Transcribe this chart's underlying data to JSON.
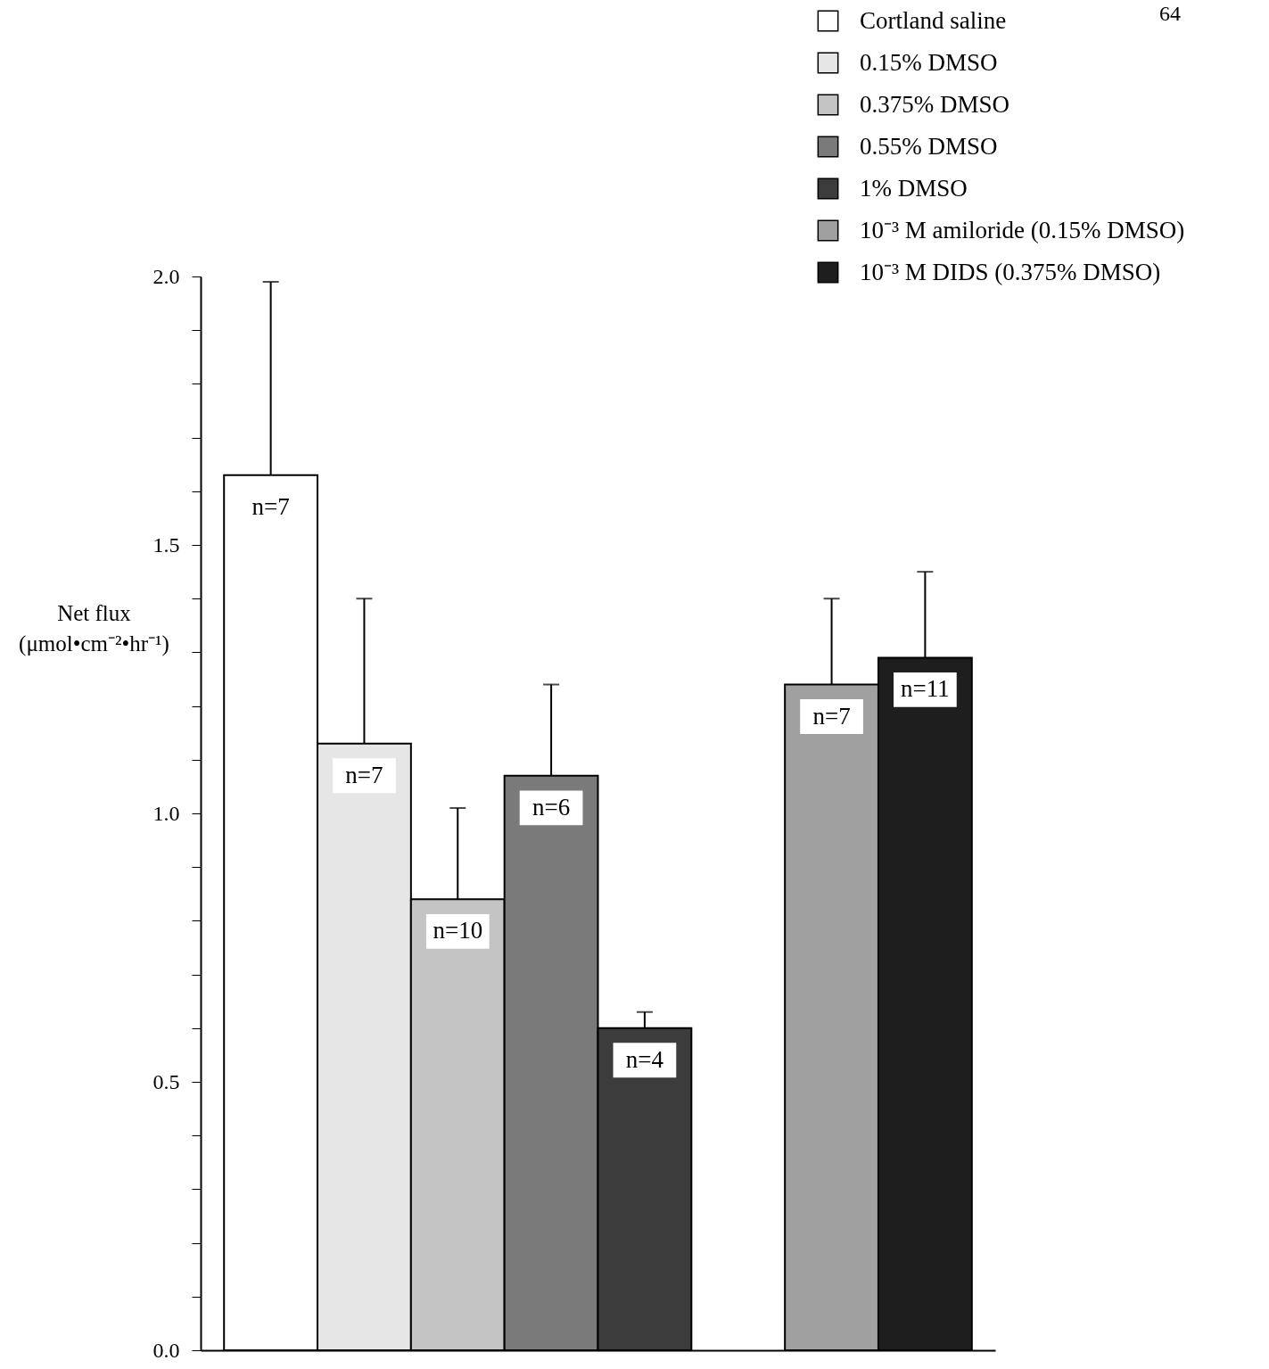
{
  "chart_data": {
    "type": "bar",
    "ylabel": "Net flux\n(μmol•cm⁻²•hr⁻¹)",
    "categories": [
      null,
      null,
      null,
      null,
      null,
      null,
      null,
      null
    ],
    "series": [
      {
        "name": "Cortland saline",
        "color": "#ffffff",
        "values": [
          1.63,
          null,
          null,
          null,
          null,
          null,
          null,
          null
        ],
        "errors": [
          [
            1.63,
            1.99
          ],
          null,
          null,
          null,
          null,
          null,
          null,
          null
        ]
      },
      {
        "name": "0.15% DMSO",
        "color": "#e6e6e6",
        "values": [
          null,
          1.13,
          null,
          null,
          null,
          null,
          null,
          null
        ],
        "errors": [
          null,
          [
            1.13,
            1.4
          ],
          null,
          null,
          null,
          null,
          null,
          null
        ]
      },
      {
        "name": "0.375% DMSO",
        "color": "#c4c4c4",
        "values": [
          null,
          null,
          0.84,
          null,
          null,
          null,
          null,
          null
        ],
        "errors": [
          null,
          null,
          [
            0.84,
            1.01
          ],
          null,
          null,
          null,
          null,
          null
        ]
      },
      {
        "name": "0.55% DMSO",
        "color": "#7a7a7a",
        "values": [
          null,
          null,
          null,
          1.07,
          null,
          null,
          null,
          null
        ],
        "errors": [
          null,
          null,
          null,
          [
            1.07,
            1.24
          ],
          null,
          null,
          null,
          null
        ]
      },
      {
        "name": "1% DMSO",
        "color": "#3c3c3c",
        "values": [
          null,
          null,
          null,
          null,
          0.6,
          null,
          null,
          null
        ],
        "errors": [
          null,
          null,
          null,
          null,
          [
            0.6,
            0.63
          ],
          null,
          null,
          null
        ]
      },
      {
        "name": "10⁻³ M amiloride (0.15% DMSO)",
        "color": "#a0a0a0",
        "values": [
          null,
          null,
          null,
          null,
          null,
          null,
          1.24,
          null
        ],
        "errors": [
          null,
          null,
          null,
          null,
          null,
          null,
          [
            1.24,
            1.4
          ],
          null
        ]
      },
      {
        "name": "10⁻³ M DIDS (0.375% DMSO)",
        "color": "#1e1e1e",
        "values": [
          null,
          null,
          null,
          null,
          null,
          null,
          null,
          1.29
        ],
        "errors": [
          null,
          null,
          null,
          null,
          null,
          null,
          null,
          [
            1.29,
            1.45
          ]
        ]
      }
    ],
    "ylim": [
      0,
      2
    ],
    "yticks": [
      {
        "value": 0,
        "label": "0.0"
      },
      {
        "value": 0.1,
        "label": null
      },
      {
        "value": 0.2,
        "label": null
      },
      {
        "value": 0.3,
        "label": null
      },
      {
        "value": 0.4,
        "label": null
      },
      {
        "value": 0.5,
        "label": "0.5"
      },
      {
        "value": 0.6,
        "label": null
      },
      {
        "value": 0.7,
        "label": null
      },
      {
        "value": 0.8,
        "label": null
      },
      {
        "value": 0.9,
        "label": null
      },
      {
        "value": 1,
        "label": "1.0"
      },
      {
        "value": 1.1,
        "label": null
      },
      {
        "value": 1.2,
        "label": null
      },
      {
        "value": 1.3,
        "label": null
      },
      {
        "value": 1.4,
        "label": null
      },
      {
        "value": 1.5,
        "label": "1.5"
      },
      {
        "value": 1.6,
        "label": null
      },
      {
        "value": 1.7,
        "label": null
      },
      {
        "value": 1.8,
        "label": null
      },
      {
        "value": 1.9,
        "label": null
      },
      {
        "value": 2,
        "label": "2.0"
      }
    ],
    "tick_labels": "y",
    "legend": "top right",
    "grid": false,
    "annotations": [
      "64",
      {
        "text": "n=7",
        "y": 1.63
      },
      {
        "text": "n=7",
        "y": 1.13
      },
      {
        "text": "n=10",
        "y": 0.84
      },
      {
        "text": "n=6",
        "y": 1.07
      },
      {
        "text": "n=4",
        "y": 0.6
      },
      {
        "text": "n=7",
        "y": 1.24
      },
      {
        "text": "n=11",
        "y": 1.29
      }
    ]
  }
}
